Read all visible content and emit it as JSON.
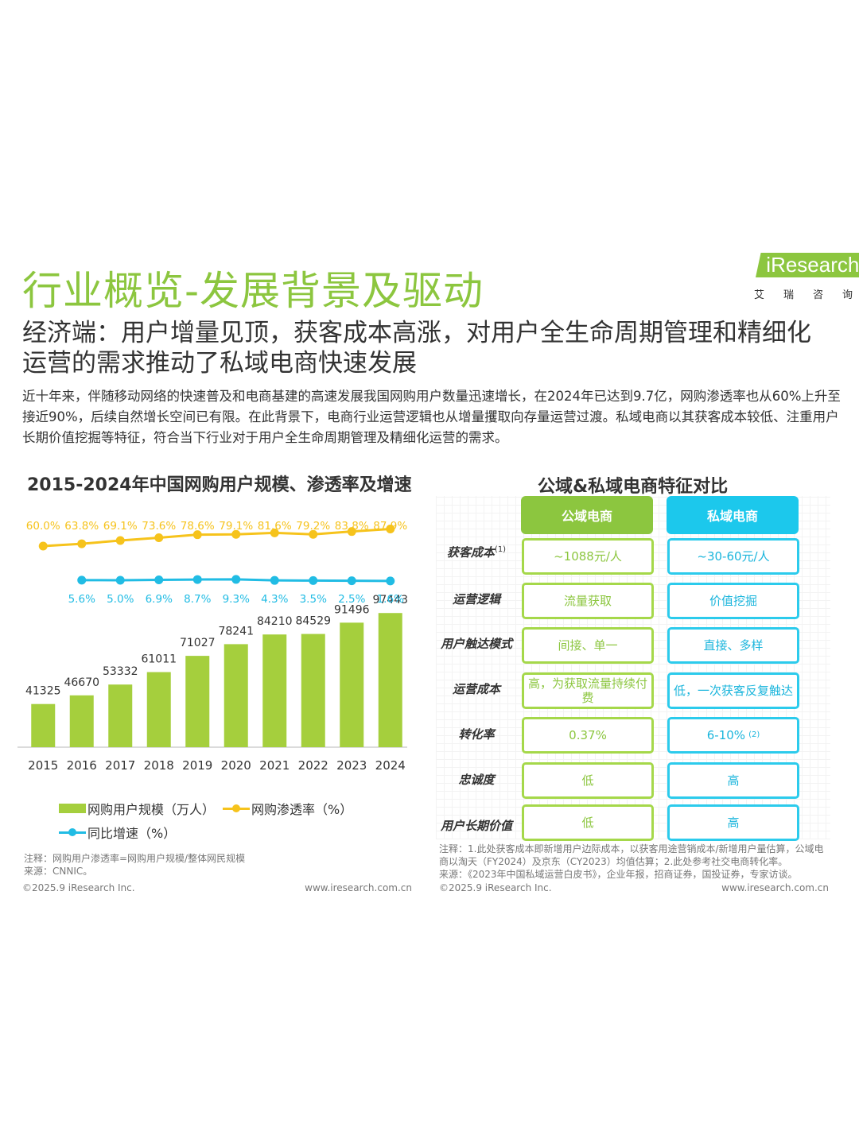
{
  "header": {
    "title": "行业概览-发展背景及驱动",
    "logo_text": "iResearch",
    "logo_cn": [
      "艾",
      "瑞",
      "咨",
      "询"
    ]
  },
  "subtitle": "经济端：用户增量见顶，获客成本高涨，对用户全生命周期管理和精细化运营的需求推动了私域电商快速发展",
  "intro": "近十年来，伴随移动网络的快速普及和电商基建的高速发展我国网购用户数量迅速增长，在2024年已达到9.7亿，网购渗透率也从60%上升至接近90%，后续自然增长空间已有限。在此背景下，电商行业运营逻辑也从增量攫取向存量运营过渡。私域电商以其获客成本较低、注重用户长期价值挖掘等特征，符合当下行业对于用户全生命周期管理及精细化运营的需求。",
  "colors": {
    "brand_green": "#8cc63f",
    "bar_green": "#a5cf3d",
    "penetration_yellow": "#f6c31c",
    "growth_blue": "#21bce4",
    "private_blue": "#1cc8ec"
  },
  "chart_data": {
    "type": "bar",
    "title": "2015-2024年中国网购用户规模、渗透率及增速",
    "categories": [
      "2015",
      "2016",
      "2017",
      "2018",
      "2019",
      "2020",
      "2021",
      "2022",
      "2023",
      "2024"
    ],
    "series": [
      {
        "name": "网购用户规模（万人）",
        "kind": "bar",
        "values": [
          41325,
          46670,
          53332,
          61011,
          71027,
          78241,
          84210,
          84529,
          91496,
          97443
        ]
      },
      {
        "name": "网购渗透率（%）",
        "kind": "line",
        "values": [
          60.0,
          63.8,
          69.1,
          73.6,
          78.6,
          79.1,
          81.6,
          79.2,
          83.8,
          87.9
        ]
      },
      {
        "name": "同比增速（%）",
        "kind": "line",
        "values": [
          null,
          5.6,
          5.0,
          6.9,
          8.7,
          9.3,
          4.3,
          3.5,
          2.5,
          1.6
        ]
      }
    ],
    "bar_labels": [
      "41325",
      "46670",
      "53332",
      "61011",
      "71027",
      "78241",
      "84210",
      "84529",
      "91496",
      "97443"
    ],
    "penetration_labels": [
      "60.0%",
      "63.8%",
      "69.1%",
      "73.6%",
      "78.6%",
      "79.1%",
      "81.6%",
      "79.2%",
      "83.8%",
      "87.9%"
    ],
    "growth_labels": [
      "",
      "5.6%",
      "5.0%",
      "6.9%",
      "8.7%",
      "9.3%",
      "4.3%",
      "3.5%",
      "2.5%",
      "1.6%"
    ],
    "ylim": [
      0,
      100000
    ],
    "legend": [
      "网购用户规模（万人）",
      "网购渗透率（%）",
      "同比增速（%）"
    ]
  },
  "left_panel": {
    "note": "注释：网购用户渗透率=网购用户规模/整体网民规模",
    "source": "来源：CNNIC。",
    "copyright": "©2025.9 iResearch Inc.",
    "website": "www.iresearch.com.cn"
  },
  "comparison": {
    "title": "公域&私域电商特征对比",
    "col_public": "公域电商",
    "col_private": "私域电商",
    "rows": [
      {
        "label": "获客成本",
        "sup": "(1)",
        "public": "~1088元/人",
        "private": "~30-60元/人",
        "private_sup": ""
      },
      {
        "label": "运营逻辑",
        "sup": "",
        "public": "流量获取",
        "private": "价值挖掘",
        "private_sup": ""
      },
      {
        "label": "用户触达模式",
        "sup": "",
        "public": "间接、单一",
        "private": "直接、多样",
        "private_sup": ""
      },
      {
        "label": "运营成本",
        "sup": "",
        "public": "高，为获取流量持续付费",
        "private": "低，一次获客反复触达",
        "private_sup": ""
      },
      {
        "label": "转化率",
        "sup": "",
        "public": "0.37%",
        "private": "6-10%",
        "private_sup": "(2)"
      },
      {
        "label": "忠诚度",
        "sup": "",
        "public": "低",
        "private": "高",
        "private_sup": ""
      },
      {
        "label": "用户长期价值",
        "sup": "",
        "public": "低",
        "private": "高",
        "private_sup": ""
      }
    ],
    "note": "注释：1.此处获客成本即新增用户边际成本，以获客用途营销成本/新增用户量估算，公域电商以淘天（FY2024）及京东（CY2023）均值估算；2.此处参考社交电商转化率。",
    "source": "来源：《2023年中国私域运营白皮书》，企业年报，招商证券，国投证券，专家访谈。",
    "copyright": "©2025.9 iResearch Inc.",
    "website": "www.iresearch.com.cn"
  }
}
